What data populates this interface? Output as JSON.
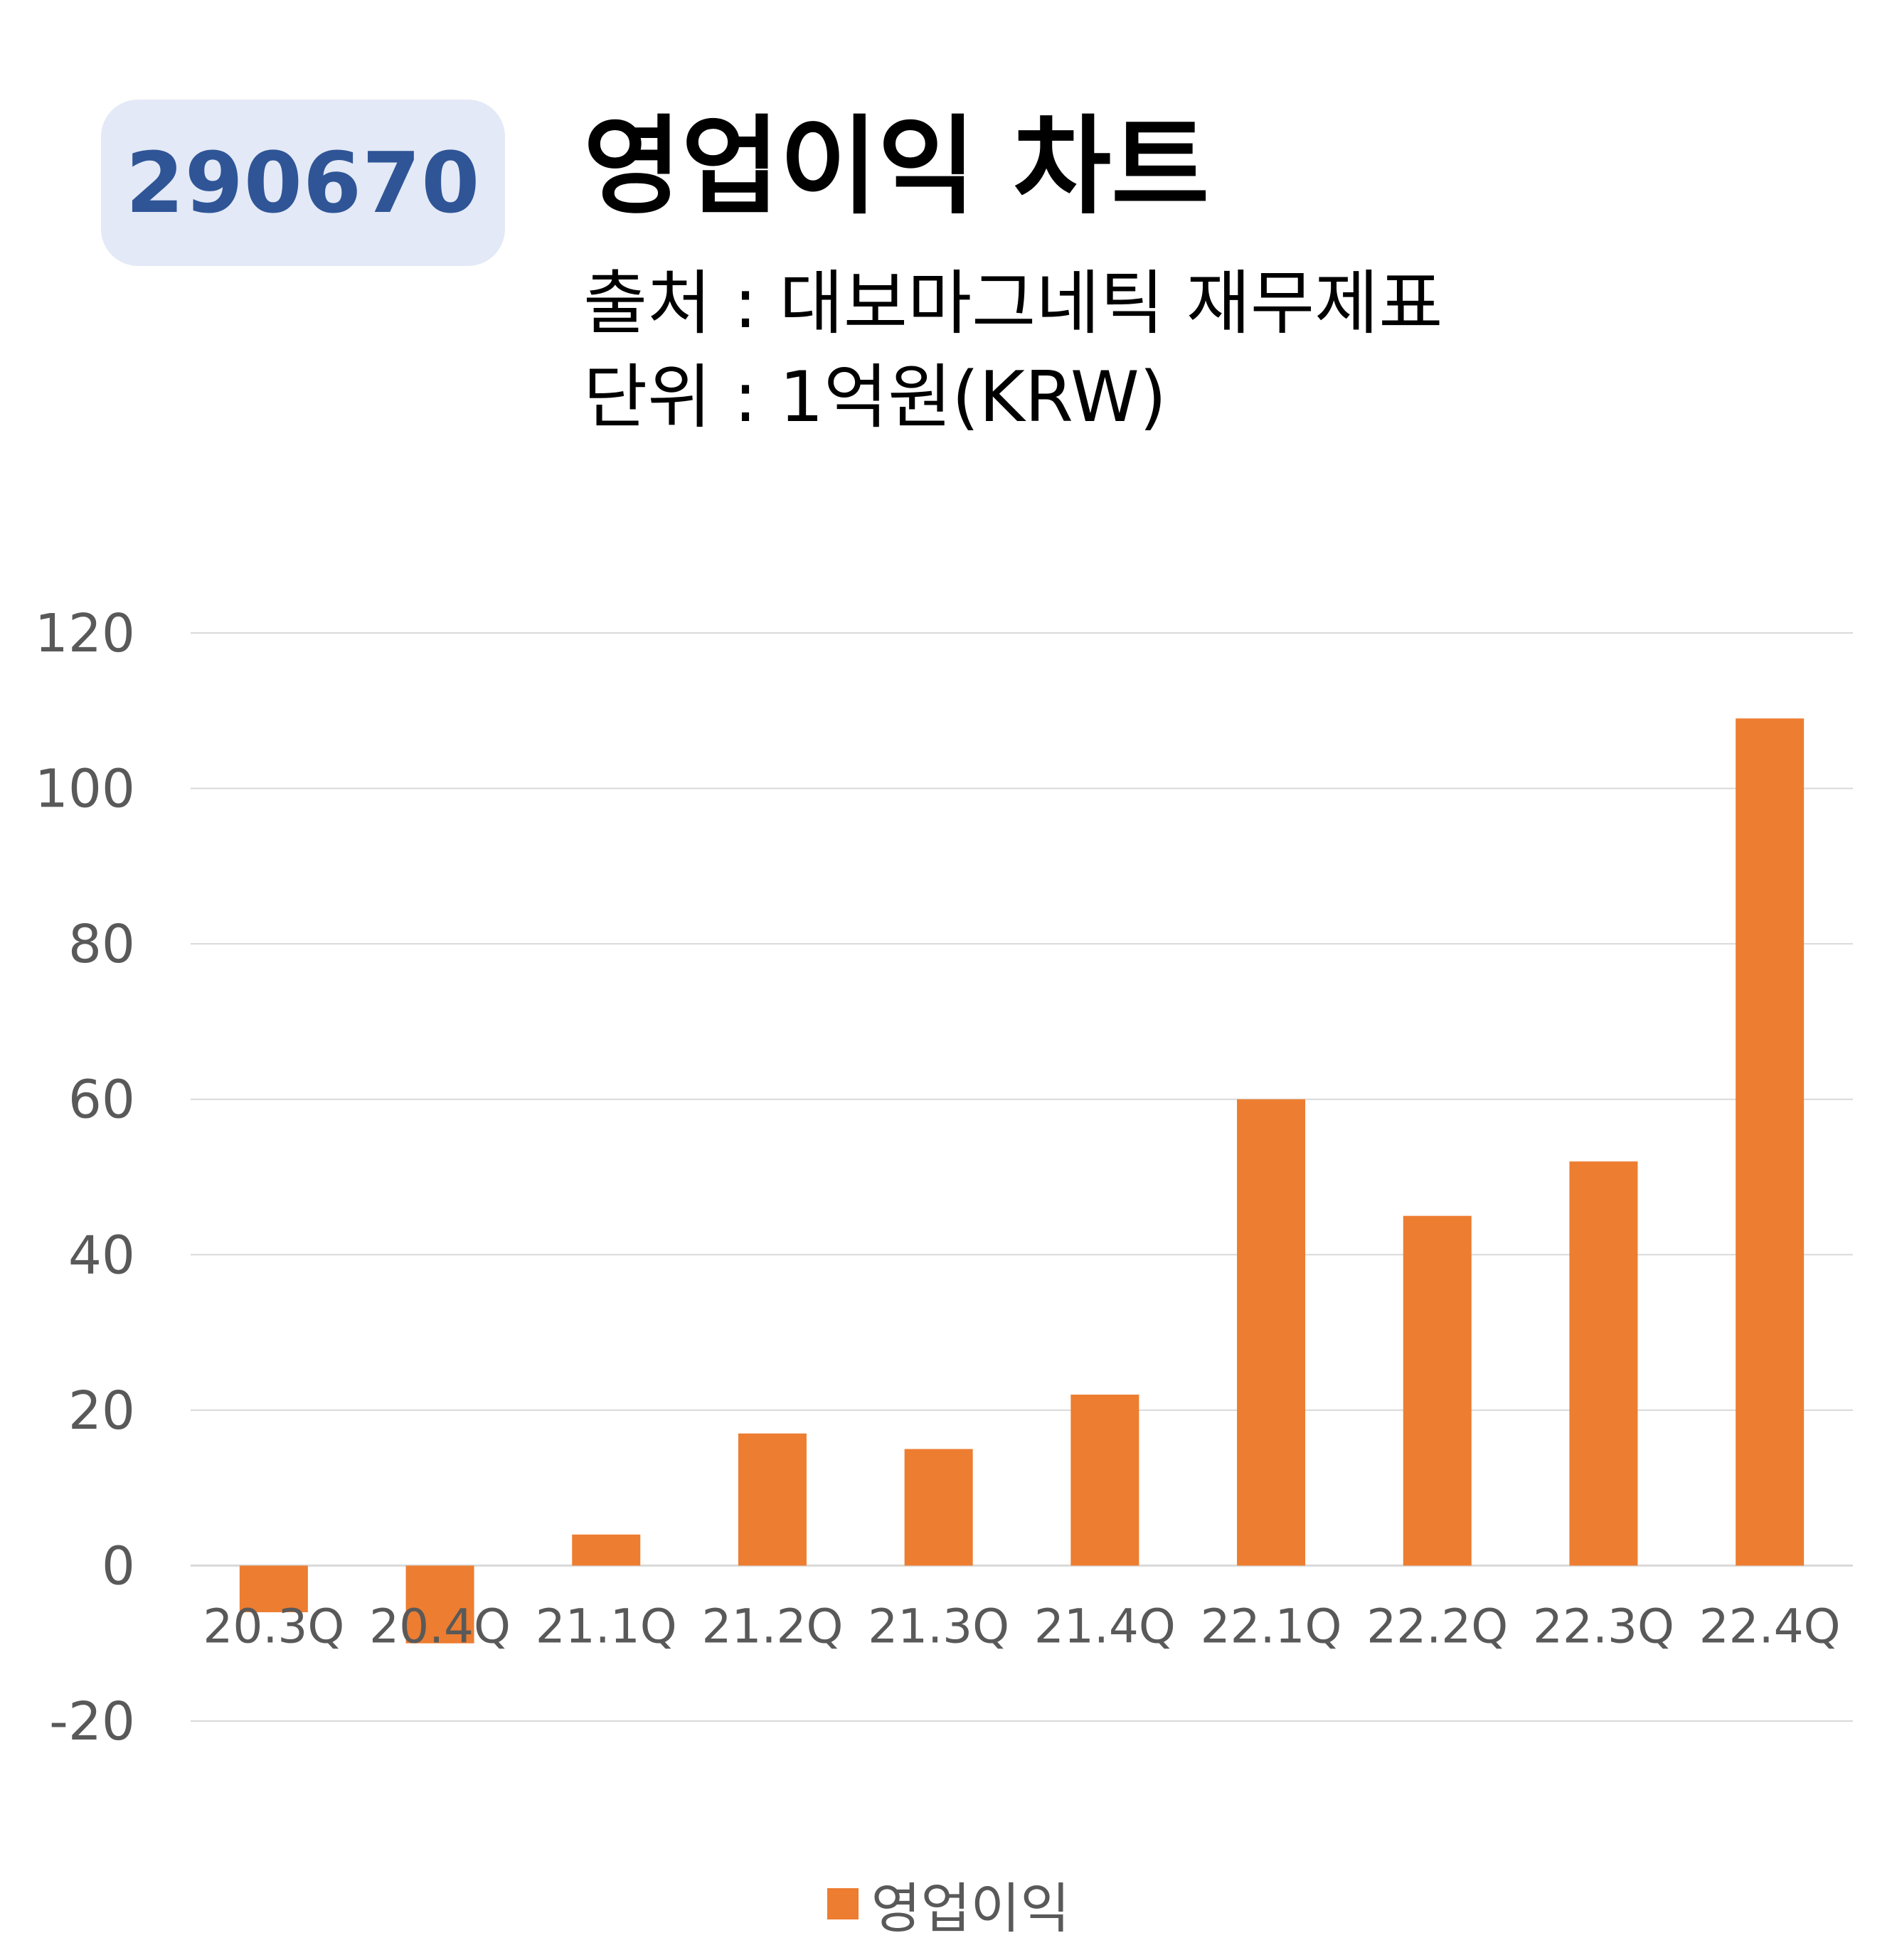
{
  "header": {
    "code": "290670",
    "title": "영업이익 차트",
    "source_line": "출처 : 대보마그네틱 재무제표",
    "unit_line": "단위 : 1억원(KRW)"
  },
  "colors": {
    "bar": "#ed7d31",
    "badge_bg": "#e3e9f6",
    "badge_text": "#2f5597",
    "grid": "#d9d9d9",
    "tick": "#595959"
  },
  "chart_data": {
    "type": "bar",
    "categories": [
      "20.3Q",
      "20.4Q",
      "21.1Q",
      "21.2Q",
      "21.3Q",
      "21.4Q",
      "22.1Q",
      "22.2Q",
      "22.3Q",
      "22.4Q"
    ],
    "series": [
      {
        "name": "영업이익",
        "values": [
          -6,
          -10,
          4,
          17,
          15,
          22,
          60,
          45,
          52,
          109
        ]
      }
    ],
    "ylim": [
      -20,
      120
    ],
    "yticks": [
      120,
      100,
      80,
      60,
      40,
      20,
      0,
      -20
    ],
    "grid": true,
    "legend_position": "bottom"
  }
}
